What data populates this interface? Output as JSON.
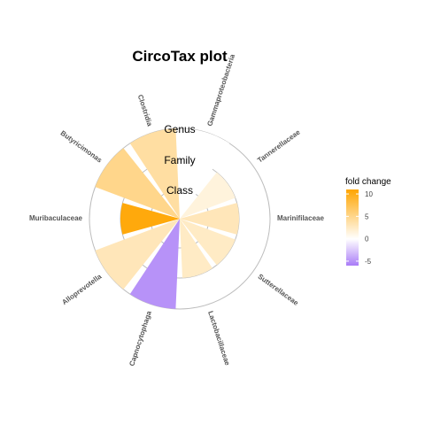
{
  "chart_data": {
    "type": "polar-bar",
    "title": "CircoTax plot",
    "rings": [
      "Genus",
      "Family",
      "Class"
    ],
    "legend": {
      "title": "fold change",
      "ticks": [
        10,
        5,
        0,
        -5
      ],
      "min": -6,
      "max": 11
    },
    "colors": {
      "high": "#FFA500",
      "mid": "#FFFFFF",
      "low": "#A97CF7",
      "border": "#BDBDBD"
    },
    "categories": [
      {
        "name": "Gammaproteobacteria",
        "level": 3,
        "value": 0
      },
      {
        "name": "Tannerellaceae",
        "level": 2,
        "value": 1.5
      },
      {
        "name": "Marinifilaceae",
        "level": 2,
        "value": 3
      },
      {
        "name": "Sutterellaceae",
        "level": 2,
        "value": 2.5
      },
      {
        "name": "Lactobacillaceae",
        "level": 2,
        "value": 2.5
      },
      {
        "name": "Capnocytophaga",
        "level": 3,
        "value": -5
      },
      {
        "name": "Alloprevotella",
        "level": 3,
        "value": 3
      },
      {
        "name": "Muribaculaceae",
        "level": 2,
        "value": 10.5
      },
      {
        "name": "Butyricimonas",
        "level": 3,
        "value": 5
      },
      {
        "name": "Clostridia",
        "level": 3,
        "value": 4
      }
    ]
  }
}
